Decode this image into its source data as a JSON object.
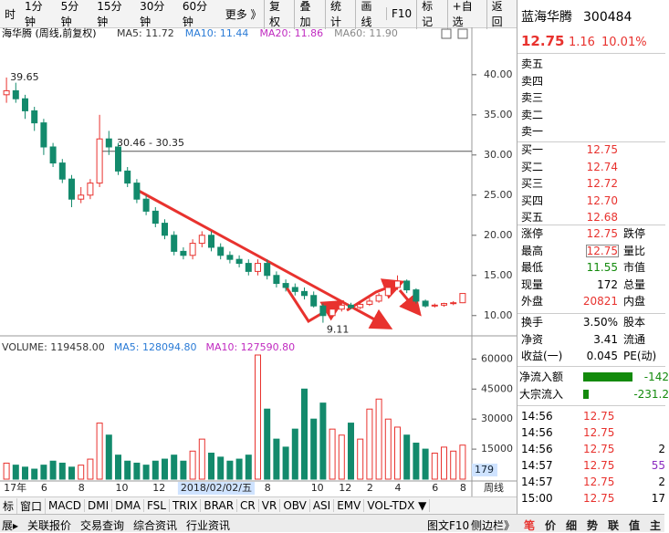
{
  "toolbar": [
    "时",
    "1分钟",
    "5分钟",
    "15分钟",
    "30分钟",
    "60分钟",
    "更多 》",
    "复权",
    "叠加",
    "统计",
    "画线",
    "F10",
    "标记",
    "+自选",
    "返回"
  ],
  "chart_data": {
    "type": "candlestick",
    "title": "海华腾 (周线,前复权)",
    "ma_labels": [
      "MA5: 11.72",
      "MA10: 11.44",
      "MA20: 11.86",
      "MA60: 11.90"
    ],
    "ma_colors": [
      "#333333",
      "#2a7bd6",
      "#c02ac0",
      "#888888"
    ],
    "up_color": "#e8322e",
    "down_color": "#138a6c",
    "categories": [
      "17年",
      null,
      null,
      null,
      "6",
      null,
      null,
      null,
      "8",
      null,
      null,
      null,
      "10",
      null,
      null,
      null,
      "12",
      null,
      null,
      "2018/02/02/五",
      null,
      null,
      null,
      null,
      null,
      null,
      null,
      null,
      "8",
      null,
      null,
      null,
      null,
      "10",
      null,
      null,
      "12",
      null,
      null,
      "2",
      null,
      null,
      "4",
      null,
      null,
      null,
      "6",
      null,
      null,
      "8"
    ],
    "open": [
      37.5,
      38,
      37,
      35.5,
      34,
      31,
      29,
      27,
      24.5,
      25,
      26.5,
      32,
      31,
      28,
      26.5,
      24.5,
      23,
      21.5,
      20,
      18,
      17.5,
      19,
      20,
      18.5,
      17.5,
      17,
      16.5,
      15.5,
      16.5,
      15,
      14,
      13.5,
      13,
      12.5,
      11.2,
      10,
      10.8,
      11.3,
      11,
      11.4,
      11.8,
      12.5,
      13.5,
      14.3,
      13.2,
      11.8,
      11.2,
      11.3,
      11.5,
      11.6
    ],
    "high": [
      39.65,
      39,
      37.5,
      36,
      34.5,
      31.5,
      29.5,
      27.5,
      26,
      27,
      35,
      33,
      31.5,
      28.5,
      27,
      25,
      23.5,
      22,
      20.5,
      18.5,
      19.5,
      20.5,
      20.5,
      19,
      18,
      17.5,
      17,
      17,
      17,
      15.5,
      14.5,
      14,
      13.5,
      13,
      11.5,
      11.2,
      11.6,
      11.6,
      11.8,
      12.2,
      12.8,
      13.8,
      15,
      14.5,
      13.4,
      12,
      11.5,
      11.6,
      11.8,
      12.75
    ],
    "low": [
      36.5,
      36.5,
      34.5,
      33,
      30,
      28.5,
      26.5,
      23.5,
      24,
      24.5,
      26,
      30,
      27.5,
      26,
      24,
      22.5,
      21,
      19.5,
      17.5,
      17,
      17,
      18.5,
      18,
      17,
      16.5,
      16,
      15,
      15,
      14.5,
      13.5,
      13,
      12.5,
      12,
      11,
      9.11,
      9.8,
      10.5,
      10.8,
      10.8,
      11.2,
      11.6,
      12.3,
      13.2,
      12.8,
      11.5,
      11,
      11,
      11.1,
      11.3,
      11.55
    ],
    "close": [
      38,
      37,
      35.5,
      34,
      31,
      29,
      27,
      24.5,
      25,
      26.5,
      32,
      31,
      28,
      26.5,
      24.5,
      23,
      21.5,
      20,
      18,
      17.5,
      19,
      20,
      18.5,
      17.5,
      17,
      16.5,
      15.5,
      16.5,
      15,
      14,
      13.5,
      13,
      12.5,
      11.2,
      10,
      10.8,
      11.3,
      11,
      11.4,
      11.8,
      12.5,
      13.5,
      14.3,
      13.2,
      11.8,
      11.2,
      11.3,
      11.5,
      11.6,
      12.75
    ],
    "ylim": [
      7.7,
      44.3
    ],
    "yticks": [
      {
        "value": 10,
        "label": "10.00"
      },
      {
        "value": 15,
        "label": "15.00"
      },
      {
        "value": 20,
        "label": "20.00"
      },
      {
        "value": 25,
        "label": "25.00"
      },
      {
        "value": 30,
        "label": "30.00"
      },
      {
        "value": 35,
        "label": "35.00"
      },
      {
        "value": 40,
        "label": "40.00"
      }
    ],
    "annotations": {
      "high_label": "39.65",
      "low_label": "9.11",
      "level": 30.46,
      "level_label": "30.46 - 30.35"
    },
    "volume": {
      "labels": [
        "VOLUME: 119458.00",
        "MA5: 128094.80",
        "MA10: 127590.80"
      ],
      "values": [
        8000,
        7000,
        6000,
        5000,
        7000,
        9000,
        8000,
        6000,
        7000,
        10000,
        28000,
        22000,
        12000,
        9000,
        8000,
        7000,
        9000,
        10000,
        12000,
        9000,
        14000,
        20000,
        13000,
        11000,
        9000,
        10000,
        12000,
        62000,
        35000,
        20000,
        16000,
        25000,
        45000,
        30000,
        38000,
        25000,
        22000,
        28000,
        20000,
        35000,
        40000,
        30000,
        26000,
        22000,
        18000,
        15000,
        13000,
        16000,
        14000,
        17000
      ],
      "ylim": [
        0,
        62000
      ],
      "yticks": [
        15000,
        30000,
        45000,
        60000
      ],
      "cursor": "179"
    },
    "period": "周线"
  },
  "indicators": [
    "标",
    "窗口",
    "MACD",
    "DMI",
    "DMA",
    "FSL",
    "TRIX",
    "BRAR",
    "CR",
    "VR",
    "OBV",
    "ASI",
    "EMV",
    "VOL-TDX ▼"
  ],
  "bottom_tabs": [
    "展▸",
    "关联报价",
    "交易查询",
    "综合资讯",
    "行业资讯"
  ],
  "bottom_right": [
    "图文F10",
    "侧边栏》"
  ],
  "side_tabs": [
    "笔",
    "价",
    "细",
    "势",
    "联",
    "值",
    "主"
  ],
  "quote": {
    "name": "蓝海华腾",
    "code": "300484",
    "price": "12.75",
    "change": "1.16",
    "pct": "10.01%",
    "sell": [
      "卖五",
      "卖四",
      "卖三",
      "卖二",
      "卖一"
    ],
    "buy": [
      [
        "买一",
        "12.75"
      ],
      [
        "买二",
        "12.74"
      ],
      [
        "买三",
        "12.72"
      ],
      [
        "买四",
        "12.70"
      ],
      [
        "买五",
        "12.68"
      ]
    ],
    "stats1": [
      [
        "涨停",
        "12.75",
        "跌停"
      ],
      [
        "最高",
        "12.75",
        "量比"
      ],
      [
        "最低",
        "11.55",
        "市值"
      ],
      [
        "现量",
        "172",
        "总量"
      ],
      [
        "外盘",
        "20821",
        "内盘"
      ]
    ],
    "stats2": [
      [
        "换手",
        "3.50%",
        "股本"
      ],
      [
        "净资",
        "3.41",
        "流通"
      ],
      [
        "收益(一)",
        "0.045",
        "PE(动)"
      ]
    ],
    "flow": [
      [
        "净流入额",
        "-142"
      ],
      [
        "大宗流入",
        "-231.2"
      ]
    ],
    "trades": [
      [
        "14:56",
        "12.75"
      ],
      [
        "14:56",
        "12.75"
      ],
      [
        "14:56",
        "12.75",
        "2"
      ],
      [
        "14:57",
        "12.75",
        "55"
      ],
      [
        "14:57",
        "12.75",
        "2"
      ],
      [
        "15:00",
        "12.75",
        "17"
      ]
    ]
  }
}
